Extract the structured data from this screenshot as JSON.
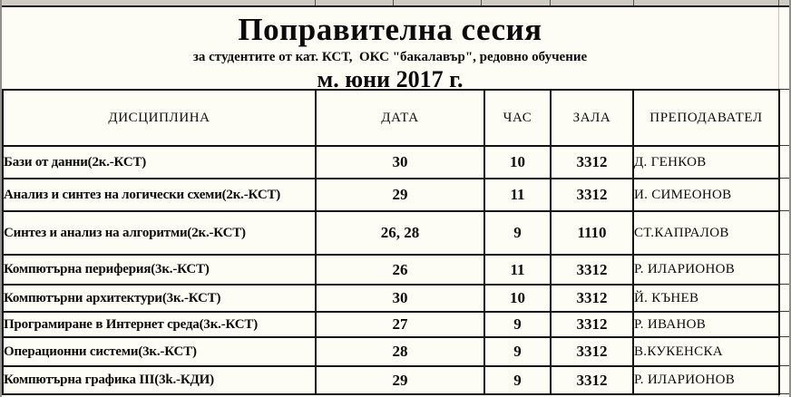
{
  "header": {
    "title": "Поправителна сесия",
    "subtitle": "за студентите от кат. КСТ,  ОКС \"бакалавър\", редовно обучение",
    "period": "м. юни 2017 г."
  },
  "table": {
    "columns": [
      "ДИСЦИПЛИНА",
      "ДАТА",
      "ЧАС",
      "ЗАЛА",
      "ПРЕПОДАВАТЕЛ"
    ],
    "rows": [
      {
        "discipline": "Бази от данни(2к.-КСТ)",
        "date": "30",
        "hour": "10",
        "room": "3312",
        "teacher": "Д. ГЕНКОВ"
      },
      {
        "discipline": "Анализ и синтез на логически схеми(2к.-КСТ)",
        "date": "29",
        "hour": "11",
        "room": "3312",
        "teacher": "И. СИМЕОНОВ"
      },
      {
        "discipline": "Синтез и анализ на алгоритми(2к.-КСТ)",
        "date": "26, 28",
        "hour": "9",
        "room": "1110",
        "teacher": "СТ.КАПРАЛОВ"
      },
      {
        "discipline": "Компютърна периферия(3к.-КСТ)",
        "date": "26",
        "hour": "11",
        "room": "3312",
        "teacher": "Р. ИЛАРИОНОВ"
      },
      {
        "discipline": "Компютърни архитектури(3к.-КСТ)",
        "date": "30",
        "hour": "10",
        "room": "3312",
        "teacher": "Й. КЪНЕВ"
      },
      {
        "discipline": "Програмиране в Интернет среда(3к.-КСТ)",
        "date": "27",
        "hour": "9",
        "room": "3312",
        "teacher": "Р. ИВАНОВ"
      },
      {
        "discipline": "Операционни системи(3к.-КСТ)",
        "date": "28",
        "hour": "9",
        "room": "3312",
        "teacher": "В.КУКЕНСКА"
      },
      {
        "discipline": "Компютърна графика III(3k.-КДИ)",
        "date": "29",
        "hour": "9",
        "room": "3312",
        "teacher": "Р. ИЛАРИОНОВ"
      }
    ]
  },
  "colors": {
    "page_background": "#fdfcf5",
    "strip_background": "#cfccc3",
    "table_border": "#141414",
    "window_edge": "#908f89",
    "gridline": "#c6c3ba"
  }
}
